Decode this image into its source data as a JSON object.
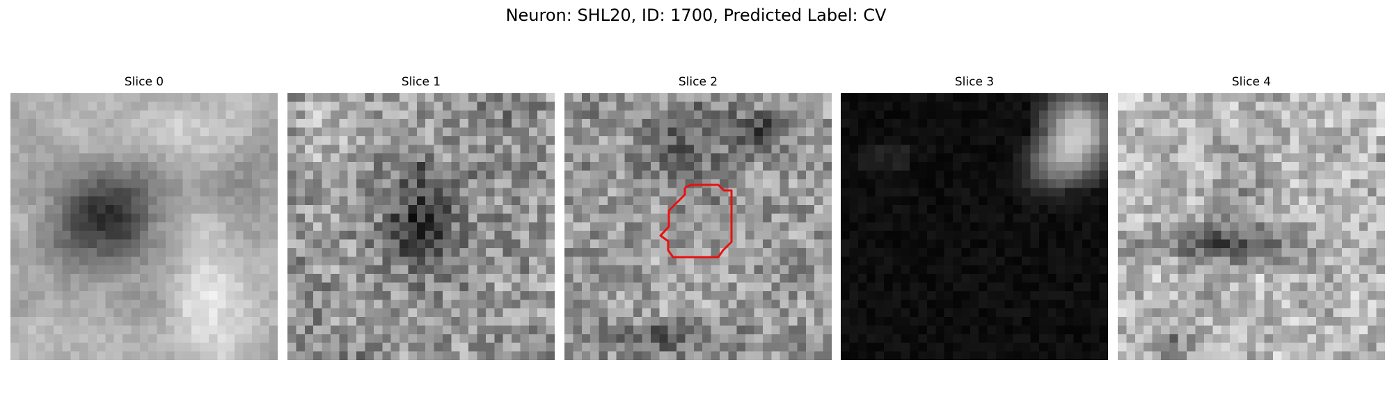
{
  "figure": {
    "title": "Neuron: SHL20, ID: 1700, Predicted Label: CV"
  },
  "panels": [
    {
      "title": "Slice 0"
    },
    {
      "title": "Slice 1"
    },
    {
      "title": "Slice 2"
    },
    {
      "title": "Slice 3"
    },
    {
      "title": "Slice 4"
    }
  ],
  "colors": {
    "background": "#ffffff",
    "contour": "#e8110f",
    "colormap": "grayscale"
  },
  "image_content": {
    "grid_size": 31,
    "contour_slice": "Slice 2"
  }
}
